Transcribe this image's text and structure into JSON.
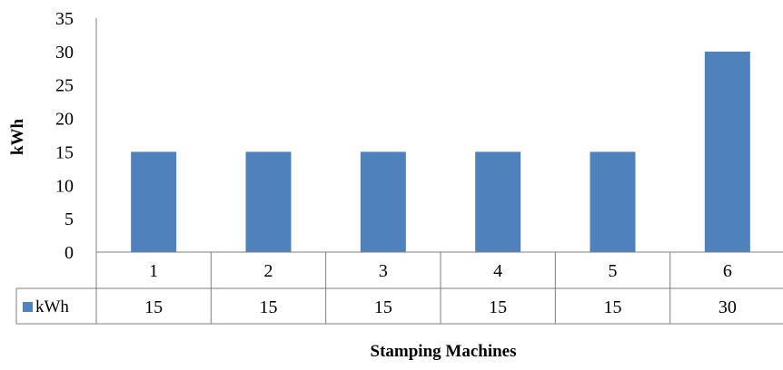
{
  "chart_data": {
    "type": "bar",
    "categories": [
      "1",
      "2",
      "3",
      "4",
      "5",
      "6"
    ],
    "series": [
      {
        "name": "kWh",
        "values": [
          15,
          15,
          15,
          15,
          15,
          30
        ],
        "color": "#4F81BD"
      }
    ],
    "xlabel": "Stamping Machines",
    "ylabel": "kWh",
    "ylim": [
      0,
      35
    ],
    "yticks": [
      "0",
      "5",
      "10",
      "15",
      "20",
      "25",
      "30",
      "35"
    ],
    "grid": false,
    "legend": "data-table",
    "data_table": true
  }
}
